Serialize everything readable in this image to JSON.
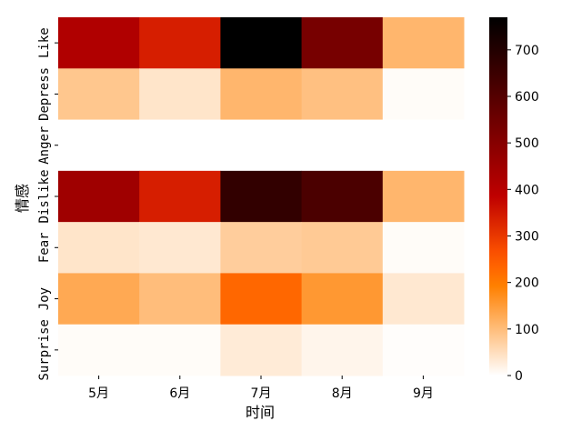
{
  "chart_data": {
    "type": "heatmap",
    "title": "",
    "xlabel": "时间",
    "ylabel": "情感",
    "x_categories": [
      "5月",
      "6月",
      "7月",
      "8月",
      "9月"
    ],
    "y_categories": [
      "Like",
      "Depress",
      "Anger",
      "Dislike",
      "Fear",
      "Joy",
      "Surprise"
    ],
    "values": [
      [
        415,
        340,
        770,
        530,
        110
      ],
      [
        85,
        40,
        110,
        95,
        5
      ],
      [
        0,
        0,
        0,
        0,
        0
      ],
      [
        450,
        340,
        670,
        620,
        110
      ],
      [
        40,
        35,
        75,
        80,
        5
      ],
      [
        130,
        100,
        230,
        155,
        35
      ],
      [
        5,
        5,
        30,
        15,
        3
      ]
    ],
    "colorbar": {
      "min": 0,
      "max": 770,
      "ticks": [
        0,
        100,
        200,
        300,
        400,
        500,
        600,
        700
      ],
      "colormap": "gist_heat_r"
    }
  }
}
